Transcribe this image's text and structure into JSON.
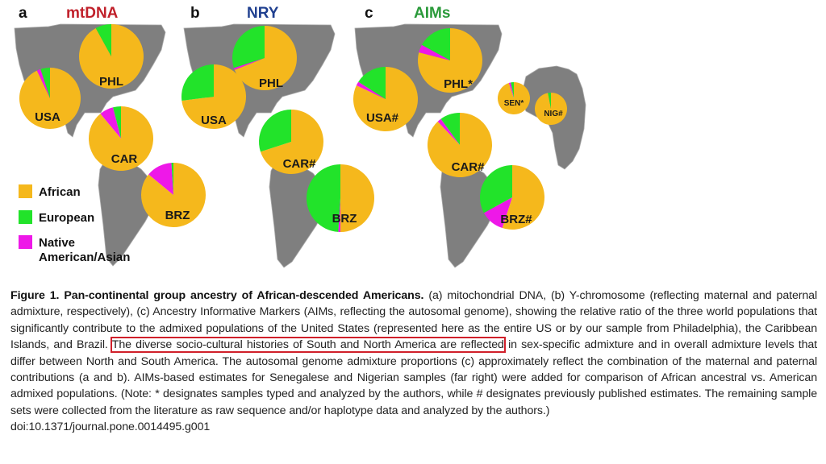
{
  "chart_data": [
    {
      "type": "pie",
      "panel": "a",
      "title": "mtDNA",
      "title_color": "#c0202a",
      "legend": [
        "African",
        "European",
        "Native American/Asian"
      ],
      "pies": [
        {
          "label": "USA",
          "values": {
            "African": 93,
            "European": 5,
            "Native American/Asian": 2
          }
        },
        {
          "label": "PHL",
          "values": {
            "African": 92,
            "European": 8,
            "Native American/Asian": 0
          }
        },
        {
          "label": "CAR",
          "values": {
            "African": 89,
            "European": 4,
            "Native American/Asian": 7
          }
        },
        {
          "label": "BRZ",
          "values": {
            "African": 86,
            "European": 1,
            "Native American/Asian": 13
          }
        }
      ]
    },
    {
      "type": "pie",
      "panel": "b",
      "title": "NRY",
      "title_color": "#1f3f8f",
      "legend": [
        "African",
        "European",
        "Native American/Asian"
      ],
      "pies": [
        {
          "label": "USA",
          "values": {
            "African": 73,
            "European": 27,
            "Native American/Asian": 0
          }
        },
        {
          "label": "PHL",
          "values": {
            "African": 69,
            "European": 30,
            "Native American/Asian": 1
          }
        },
        {
          "label": "CAR#",
          "values": {
            "African": 70,
            "European": 30,
            "Native American/Asian": 0
          }
        },
        {
          "label": "BRZ",
          "values": {
            "African": 50,
            "European": 49,
            "Native American/Asian": 1
          }
        }
      ]
    },
    {
      "type": "pie",
      "panel": "c",
      "title": "AIMs",
      "title_color": "#2a9a3a",
      "legend": [
        "African",
        "European",
        "Native American/Asian"
      ],
      "pies": [
        {
          "label": "USA#",
          "values": {
            "African": 82,
            "European": 16,
            "Native American/Asian": 2
          }
        },
        {
          "label": "PHL*",
          "values": {
            "African": 79,
            "European": 17,
            "Native American/Asian": 4
          }
        },
        {
          "label": "CAR#",
          "values": {
            "African": 88,
            "European": 10,
            "Native American/Asian": 2
          }
        },
        {
          "label": "BRZ#",
          "values": {
            "African": 55,
            "European": 33,
            "Native American/Asian": 12
          }
        },
        {
          "label": "SEN*",
          "values": {
            "African": 95,
            "European": 3,
            "Native American/Asian": 2
          }
        },
        {
          "label": "NIG#",
          "values": {
            "African": 97,
            "European": 3,
            "Native American/Asian": 0
          }
        }
      ]
    }
  ],
  "figure": {
    "panel_letters": [
      "a",
      "b",
      "c"
    ],
    "panel_titles": [
      "mtDNA",
      "NRY",
      "AIMs"
    ],
    "legend": {
      "african": "African",
      "european": "European",
      "native_1": "Native",
      "native_2": "American/Asian"
    },
    "colors": {
      "african": "#f5b81c",
      "european": "#22e32a",
      "native": "#ee18e8",
      "map": "#7f7f7f",
      "map_border": "#a8a8a8",
      "highlight_box": "#d01f2a"
    }
  },
  "caption": {
    "title": "Figure 1. Pan-continental group ancestry of African-descended Americans.",
    "part1": " (a) mitochondrial DNA, (b) Y-chromosome (reflecting maternal and paternal admixture, respectively), (c) Ancestry Informative Markers (AIMs, reflecting the autosomal genome), showing the relative ratio of the three world populations that significantly contribute to the admixed populations of the United States (represented here as the entire US or by our sample from Philadelphia), the Caribbean Islands, and Brazil. ",
    "highlight": "The diverse socio-cultural histories of South and North America are reflected",
    "part2": " in sex-specific admixture and in overall admixture levels that differ between North and South America. The autosomal genome admixture proportions (c) approximately reflect the combination of the maternal and paternal contributions (a and b). AIMs-based estimates for Senegalese and Nigerian samples (far right) were added for comparison of African ancestral vs. American admixed populations. (Note: * designates samples typed and analyzed by the authors, while # designates previously published estimates. The remaining sample sets were collected from the literature as raw sequence and/or haplotype data and analyzed by the authors.)",
    "doi": "doi:10.1371/journal.pone.0014495.g001"
  }
}
